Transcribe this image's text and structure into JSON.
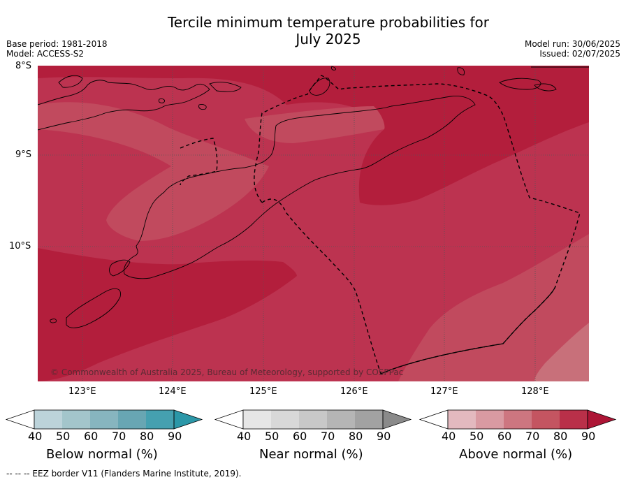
{
  "title_line1": "Tercile minimum temperature probabilities for",
  "title_line2": "July 2025",
  "base_period": "Base period: 1981-2018",
  "model": "Model: ACCESS-S2",
  "model_run": "Model run: 30/06/2025",
  "issued": "Issued: 02/07/2025",
  "map": {
    "lat_labels": [
      "8°S",
      "9°S",
      "10°S"
    ],
    "lon_labels": [
      "123°E",
      "124°E",
      "125°E",
      "126°E",
      "127°E",
      "128°E"
    ],
    "copyright": "© Commonwealth of Australia 2025, Bureau of Meteorology, supported by COSPPac",
    "colors": {
      "above_80_90": "#b31e3c",
      "above_70_80": "#bc3350",
      "above_60_70": "#c14a5e",
      "above_50_60": "#c8707a"
    }
  },
  "colorbars": [
    {
      "name": "Below normal (%)",
      "ticks": [
        "40",
        "50",
        "60",
        "70",
        "80",
        "90"
      ],
      "colors": [
        "#ffffff",
        "#bcd3da",
        "#a3c5cb",
        "#87b5bf",
        "#68a6b3",
        "#45a0b0",
        "#2b97a8"
      ]
    },
    {
      "name": "Near normal (%)",
      "ticks": [
        "40",
        "50",
        "60",
        "70",
        "80",
        "90"
      ],
      "colors": [
        "#ffffff",
        "#e6e6e6",
        "#d8d8d8",
        "#c8c8c8",
        "#b5b5b5",
        "#a2a2a2",
        "#8a8a8a"
      ]
    },
    {
      "name": "Above normal (%)",
      "ticks": [
        "40",
        "50",
        "60",
        "70",
        "80",
        "90"
      ],
      "colors": [
        "#ffffff",
        "#e3b9bf",
        "#d99aa2",
        "#cd7680",
        "#c45561",
        "#b93049",
        "#ad1535"
      ]
    }
  ],
  "footnote": "--  --  -- EEZ border V11 (Flanders Marine Institute, 2019)."
}
